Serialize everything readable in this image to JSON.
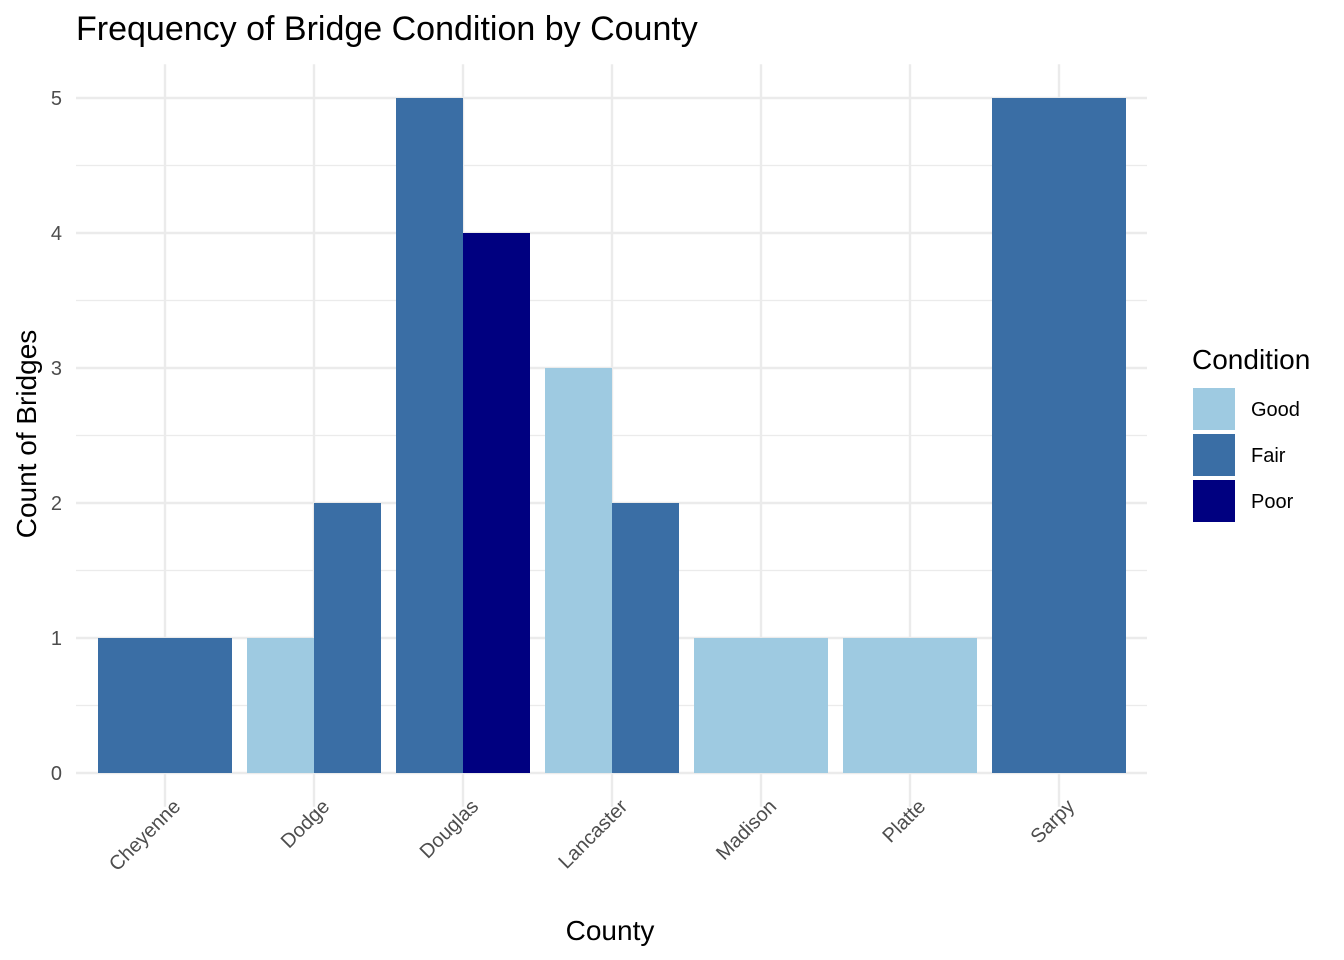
{
  "chart_data": {
    "type": "bar",
    "title": "Frequency of Bridge Condition by County",
    "xlabel": "County",
    "ylabel": "Count of Bridges",
    "ylim": [
      0,
      5.25
    ],
    "yticks": [
      0,
      1,
      2,
      3,
      4,
      5
    ],
    "grid": true,
    "legend": {
      "title": "Condition",
      "placement": "right"
    },
    "categories": [
      "Cheyenne",
      "Dodge",
      "Douglas",
      "Lancaster",
      "Madison",
      "Platte",
      "Sarpy"
    ],
    "series": [
      {
        "name": "Good",
        "color": "#9ecae1",
        "values": [
          null,
          1,
          null,
          3,
          1,
          1,
          null
        ]
      },
      {
        "name": "Fair",
        "color": "#3a6ea5",
        "values": [
          1,
          2,
          5,
          2,
          null,
          null,
          5
        ]
      },
      {
        "name": "Poor",
        "color": "#000080",
        "values": [
          null,
          null,
          4,
          null,
          null,
          null,
          null
        ]
      }
    ]
  }
}
